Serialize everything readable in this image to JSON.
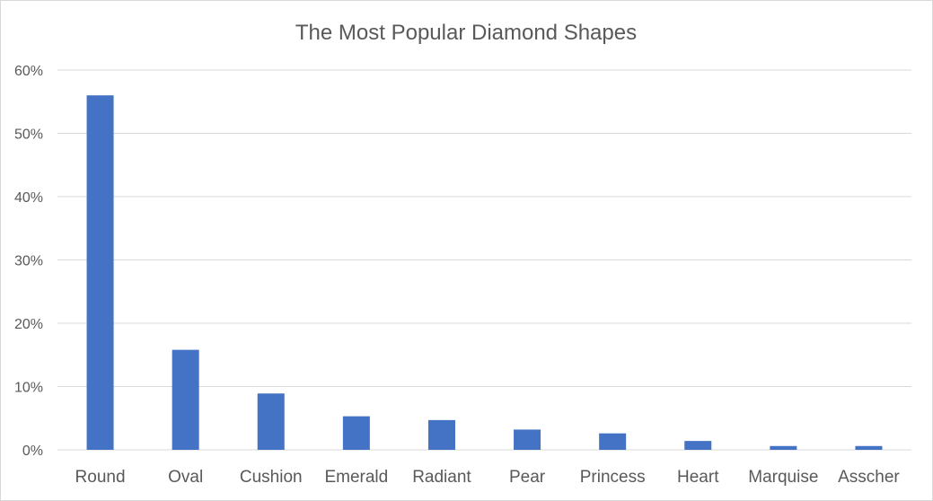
{
  "chart_data": {
    "type": "bar",
    "title": "The Most Popular Diamond Shapes",
    "xlabel": "",
    "ylabel": "",
    "categories": [
      "Round",
      "Oval",
      "Cushion",
      "Emerald",
      "Radiant",
      "Pear",
      "Princess",
      "Heart",
      "Marquise",
      "Asscher"
    ],
    "values": [
      56.0,
      15.8,
      8.9,
      5.3,
      4.7,
      3.2,
      2.6,
      1.4,
      0.6,
      0.6
    ],
    "ylim": [
      0,
      60
    ],
    "yticks": [
      "0%",
      "10%",
      "20%",
      "30%",
      "40%",
      "50%",
      "60%"
    ],
    "grid": true,
    "legend": "none",
    "bar_color": "#4472c4",
    "grid_color": "#d9d9d9",
    "text_color": "#595959"
  }
}
